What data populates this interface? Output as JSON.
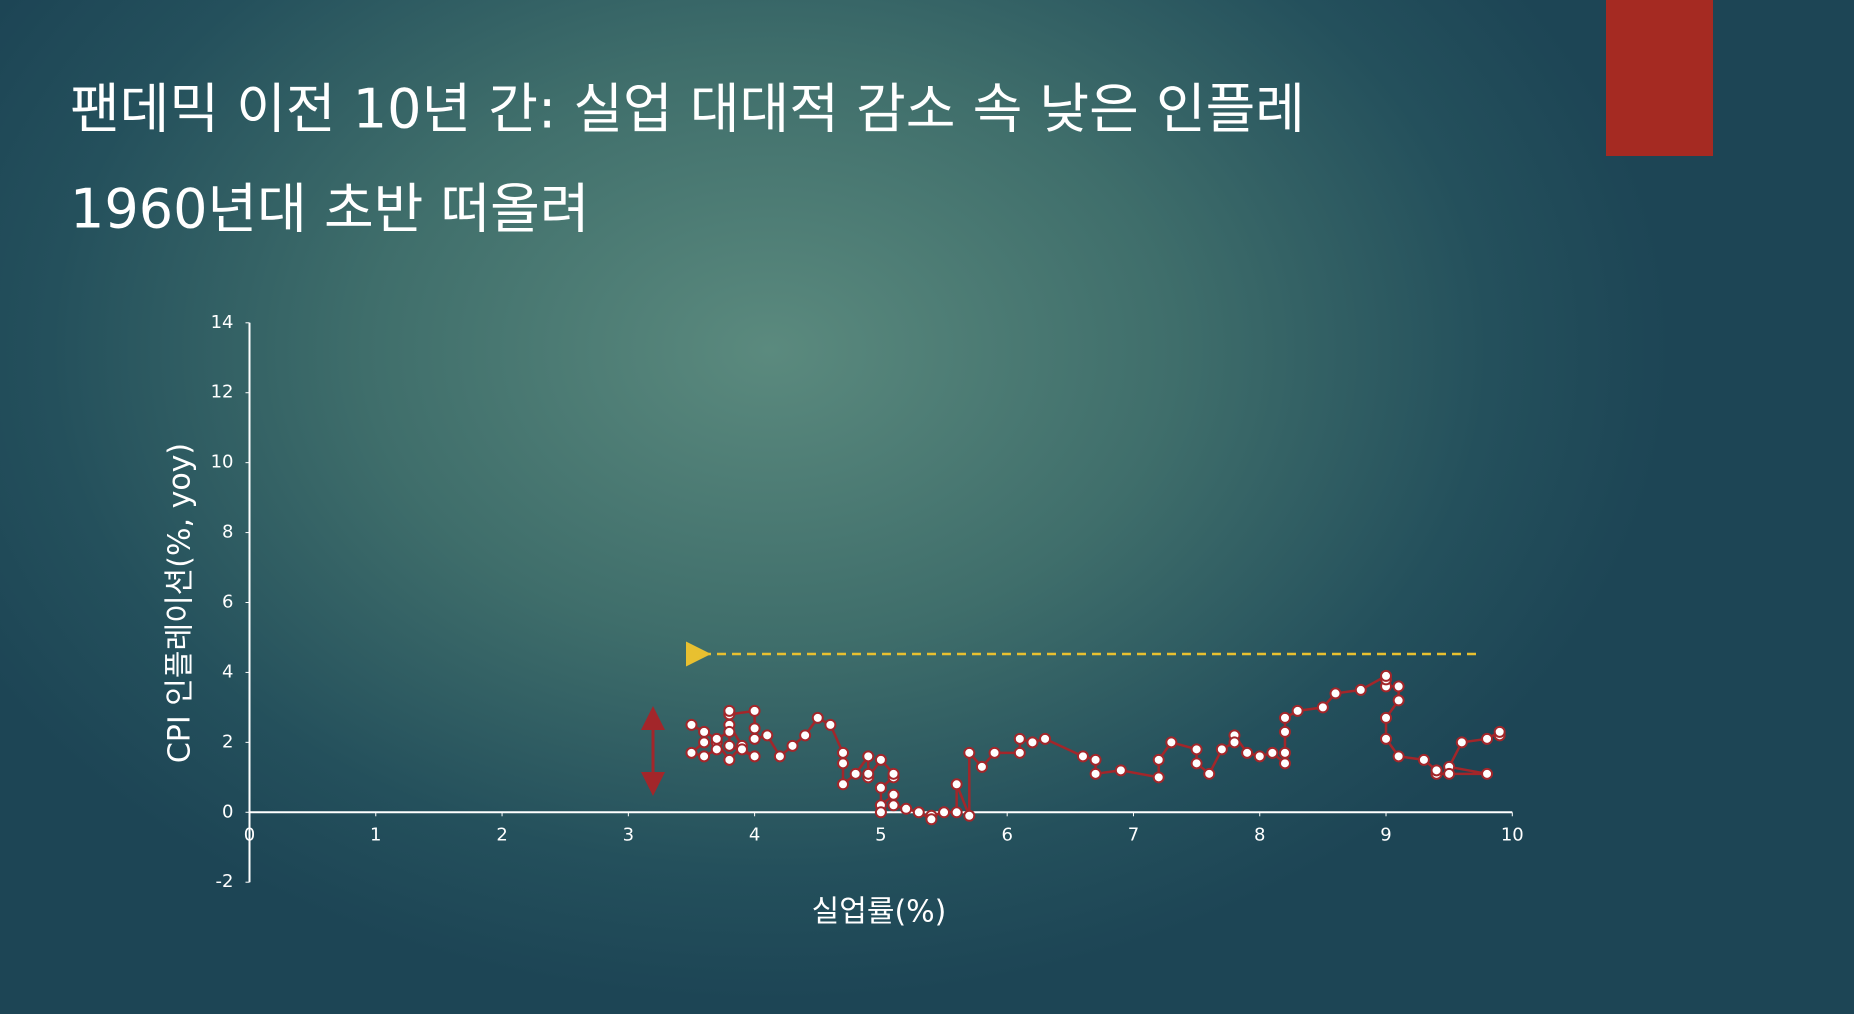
{
  "chart_data": {
    "type": "scatter",
    "title": "팬데믹 이전 10년 간: 실업 대대적 감소 속 낮은 인플레",
    "subtitle": "1960년대 초반 떠올려",
    "x_label": "실업률(%)",
    "y_label": "CPI 인플레이션(%, yoy)",
    "color": "#a3262a",
    "connected": true,
    "x": [
      9.9,
      9.9,
      9.8,
      9.6,
      9.5,
      9.8,
      9.5,
      9.4,
      9.4,
      9.3,
      9.1,
      9.0,
      9.0,
      9.1,
      9.1,
      9.0,
      9.0,
      9.0,
      8.8,
      8.6,
      8.5,
      8.3,
      8.2,
      8.2,
      8.2,
      8.2,
      8.1,
      8.0,
      7.9,
      7.8,
      7.8,
      7.7,
      7.6,
      7.5,
      7.5,
      7.3,
      7.2,
      7.2,
      6.9,
      6.7,
      6.7,
      6.6,
      6.3,
      6.2,
      6.1,
      6.1,
      5.9,
      5.8,
      5.7,
      5.7,
      5.6,
      5.6,
      5.5,
      5.4,
      5.4,
      5.3,
      5.2,
      5.1,
      5.1,
      5.0,
      5.0,
      5.0,
      5.1,
      5.1,
      5.0,
      4.9,
      4.9,
      4.9,
      4.8,
      4.7,
      4.7,
      4.7,
      4.6,
      4.5,
      4.4,
      4.3,
      4.2,
      4.1,
      4.0,
      4.0,
      4.0,
      3.8,
      3.8,
      3.8,
      3.9,
      3.8,
      3.7,
      3.7,
      3.6,
      3.5,
      3.6,
      3.6,
      3.5,
      3.7,
      3.8,
      3.8,
      4.0,
      3.9
    ],
    "values": [
      2.2,
      2.3,
      2.1,
      2.0,
      1.3,
      1.1,
      1.1,
      1.1,
      1.2,
      1.5,
      1.6,
      2.1,
      2.7,
      3.2,
      3.6,
      3.6,
      3.8,
      3.9,
      3.5,
      3.4,
      3.0,
      2.9,
      2.7,
      2.3,
      1.7,
      1.4,
      1.7,
      1.6,
      1.7,
      2.2,
      2.0,
      1.8,
      1.1,
      1.4,
      1.8,
      2.0,
      1.5,
      1.0,
      1.2,
      1.1,
      1.5,
      1.6,
      2.1,
      2.0,
      2.1,
      1.7,
      1.7,
      1.3,
      1.7,
      -0.1,
      0.8,
      0.0,
      0.0,
      -0.1,
      -0.2,
      0.0,
      0.1,
      0.2,
      0.5,
      0.2,
      0.0,
      0.7,
      1.0,
      1.1,
      1.5,
      1.0,
      1.1,
      1.6,
      1.1,
      0.8,
      1.4,
      1.7,
      2.5,
      2.7,
      2.2,
      1.9,
      1.6,
      2.2,
      2.1,
      2.4,
      2.9,
      2.8,
      2.9,
      2.5,
      1.9,
      1.5,
      2.0,
      1.8,
      1.6,
      1.7,
      2.0,
      2.3,
      2.5,
      2.1,
      2.3,
      1.9,
      1.6,
      1.8
    ],
    "xlim": [
      0,
      10
    ],
    "xticks": [
      0,
      1,
      2,
      3,
      4,
      5,
      6,
      7,
      8,
      9,
      10
    ],
    "ylim": [
      -2,
      14
    ],
    "yticks": [
      -2,
      0,
      2,
      4,
      6,
      8,
      10,
      12,
      14
    ]
  }
}
